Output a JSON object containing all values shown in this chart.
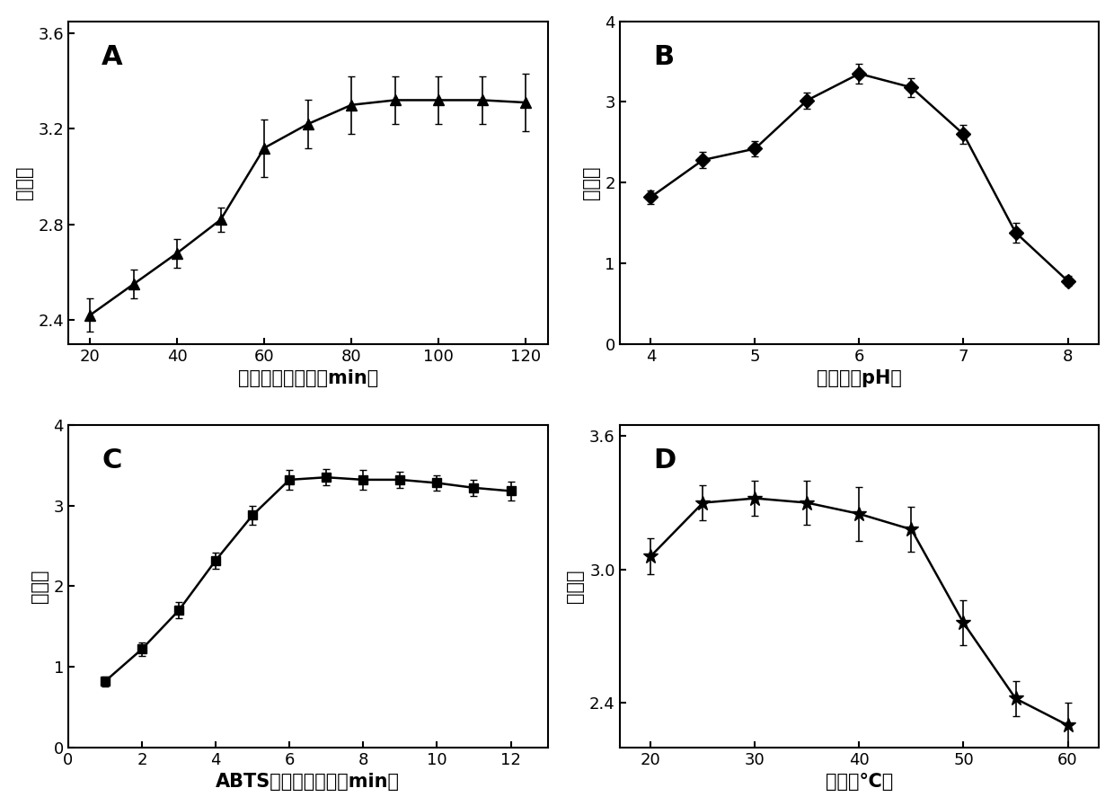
{
  "A": {
    "x": [
      20,
      30,
      40,
      50,
      60,
      70,
      80,
      90,
      100,
      110,
      120
    ],
    "y": [
      2.42,
      2.55,
      2.68,
      2.82,
      3.12,
      3.22,
      3.3,
      3.32,
      3.32,
      3.32,
      3.31
    ],
    "yerr": [
      0.07,
      0.06,
      0.06,
      0.05,
      0.12,
      0.1,
      0.12,
      0.1,
      0.1,
      0.1,
      0.12
    ],
    "xlabel": "杂交链反应时间（min）",
    "ylabel": "吸光度",
    "ylim": [
      2.3,
      3.65
    ],
    "yticks": [
      2.4,
      2.8,
      3.2,
      3.6
    ],
    "xlim": [
      15,
      125
    ],
    "xticks": [
      20,
      40,
      60,
      80,
      100,
      120
    ],
    "marker": "^",
    "label": "A"
  },
  "B": {
    "x": [
      4.0,
      4.5,
      5.0,
      5.5,
      6.0,
      6.5,
      7.0,
      7.5,
      8.0
    ],
    "y": [
      1.82,
      2.28,
      2.42,
      3.02,
      3.35,
      3.18,
      2.6,
      1.38,
      0.78
    ],
    "yerr": [
      0.08,
      0.1,
      0.1,
      0.1,
      0.12,
      0.12,
      0.12,
      0.12,
      0.06
    ],
    "xlabel": "测试溶液pH値",
    "ylabel": "吸光度",
    "ylim": [
      0,
      4
    ],
    "yticks": [
      0,
      1,
      2,
      3,
      4
    ],
    "xlim": [
      3.7,
      8.3
    ],
    "xticks": [
      4,
      5,
      6,
      7,
      8
    ],
    "marker": "D",
    "label": "B"
  },
  "C": {
    "x": [
      1,
      2,
      3,
      4,
      5,
      6,
      7,
      8,
      9,
      10,
      11,
      12
    ],
    "y": [
      0.82,
      1.22,
      1.7,
      2.32,
      2.88,
      3.32,
      3.35,
      3.32,
      3.32,
      3.28,
      3.22,
      3.18
    ],
    "yerr": [
      0.06,
      0.08,
      0.1,
      0.1,
      0.12,
      0.12,
      0.1,
      0.12,
      0.1,
      0.1,
      0.1,
      0.12
    ],
    "xlabel": "ABTS催化显色时间（min）",
    "ylabel": "吸光度",
    "ylim": [
      0,
      4
    ],
    "yticks": [
      0,
      1,
      2,
      3,
      4
    ],
    "xlim": [
      0,
      13
    ],
    "xticks": [
      0,
      2,
      4,
      6,
      8,
      10,
      12
    ],
    "marker": "s",
    "label": "C"
  },
  "D": {
    "x": [
      20,
      25,
      30,
      35,
      40,
      45,
      50,
      55,
      60
    ],
    "y": [
      3.06,
      3.3,
      3.32,
      3.3,
      3.25,
      3.18,
      2.76,
      2.42,
      2.3
    ],
    "yerr": [
      0.08,
      0.08,
      0.08,
      0.1,
      0.12,
      0.1,
      0.1,
      0.08,
      0.1
    ],
    "xlabel": "温度（℃）",
    "ylabel": "吸光度",
    "ylim": [
      2.2,
      3.65
    ],
    "yticks": [
      2.4,
      3.0,
      3.6
    ],
    "xlim": [
      17,
      63
    ],
    "xticks": [
      20,
      30,
      40,
      50,
      60
    ],
    "marker": "*",
    "label": "D"
  },
  "line_color": "#000000",
  "marker_color": "#000000",
  "markersize_tri": 9,
  "markersize_dia": 8,
  "markersize_sq": 7,
  "markersize_star": 12,
  "linewidth": 1.8,
  "capsize": 3,
  "elinewidth": 1.2,
  "label_fontsize": 15,
  "tick_fontsize": 13,
  "panel_label_fontsize": 22
}
